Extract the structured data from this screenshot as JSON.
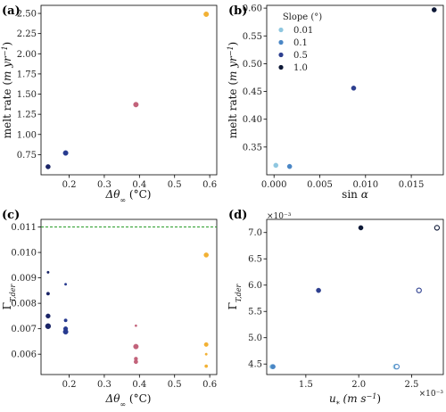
{
  "chart_data": [
    {
      "id": "a",
      "type": "scatter",
      "panel_label": "(a)",
      "xlabel": "Δθ∞ (°C)",
      "ylabel": "melt rate (m yr⁻¹)",
      "xlim": [
        0.12,
        0.62
      ],
      "ylim": [
        0.5,
        2.6
      ],
      "xticks": [
        0.2,
        0.3,
        0.4,
        0.5,
        0.6
      ],
      "xtick_labels": [
        "0.2",
        "0.3",
        "0.4",
        "0.5",
        "0.6"
      ],
      "yticks": [
        0.75,
        1.0,
        1.25,
        1.5,
        1.75,
        2.0,
        2.25,
        2.5
      ],
      "ytick_labels": [
        "0.75",
        "1.00",
        "1.25",
        "1.50",
        "1.75",
        "2.00",
        "2.25",
        "2.50"
      ],
      "points": [
        {
          "x": 0.14,
          "y": 0.6,
          "color": "#1a2466",
          "r": 2.6
        },
        {
          "x": 0.19,
          "y": 0.77,
          "color": "#273a8f",
          "r": 2.8
        },
        {
          "x": 0.39,
          "y": 1.37,
          "color": "#c2627a",
          "r": 2.8
        },
        {
          "x": 0.59,
          "y": 2.49,
          "color": "#f2b134",
          "r": 2.8
        }
      ]
    },
    {
      "id": "b",
      "type": "scatter",
      "panel_label": "(b)",
      "xlabel": "sin α",
      "ylabel": "melt rate (m yr⁻¹)",
      "xlim": [
        -0.0008,
        0.0185
      ],
      "ylim": [
        0.3,
        0.605
      ],
      "xticks": [
        0.0,
        0.005,
        0.01,
        0.015
      ],
      "xtick_labels": [
        "0.000",
        "0.005",
        "0.010",
        "0.015"
      ],
      "yticks": [
        0.35,
        0.4,
        0.45,
        0.5,
        0.55,
        0.6
      ],
      "ytick_labels": [
        "0.35",
        "0.40",
        "0.45",
        "0.50",
        "0.55",
        "0.60"
      ],
      "legend": {
        "title": "Slope (°)",
        "placement": "upper-left",
        "entries": [
          {
            "label": "0.01",
            "color": "#8fc7e0"
          },
          {
            "label": "0.1",
            "color": "#4a86c5"
          },
          {
            "label": "0.5",
            "color": "#2d3f8f"
          },
          {
            "label": "1.0",
            "color": "#0d1836"
          }
        ]
      },
      "points": [
        {
          "x": 0.0002,
          "y": 0.317,
          "color": "#8fc7e0",
          "r": 2.6
        },
        {
          "x": 0.0017,
          "y": 0.315,
          "color": "#4a86c5",
          "r": 2.6
        },
        {
          "x": 0.0087,
          "y": 0.456,
          "color": "#2d3f8f",
          "r": 2.6
        },
        {
          "x": 0.0175,
          "y": 0.597,
          "color": "#0d1836",
          "r": 2.6
        }
      ]
    },
    {
      "id": "c",
      "type": "scatter",
      "panel_label": "(c)",
      "xlabel": "Δθ∞ (°C)",
      "ylabel": "ΓT,der",
      "xlim": [
        0.12,
        0.62
      ],
      "ylim": [
        0.0052,
        0.0113
      ],
      "xticks": [
        0.2,
        0.3,
        0.4,
        0.5,
        0.6
      ],
      "xtick_labels": [
        "0.2",
        "0.3",
        "0.4",
        "0.5",
        "0.6"
      ],
      "yticks": [
        0.006,
        0.007,
        0.008,
        0.009,
        0.01,
        0.011
      ],
      "ytick_labels": [
        "0.006",
        "0.007",
        "0.008",
        "0.009",
        "0.010",
        "0.011"
      ],
      "hline": {
        "y": 0.011,
        "color": "#2a9d2a",
        "style": "dashed"
      },
      "points": [
        {
          "x": 0.14,
          "y": 0.00922,
          "color": "#1a2466",
          "r": 1.3
        },
        {
          "x": 0.14,
          "y": 0.00838,
          "color": "#1a2466",
          "r": 1.8
        },
        {
          "x": 0.14,
          "y": 0.0075,
          "color": "#1a2466",
          "r": 2.5
        },
        {
          "x": 0.14,
          "y": 0.0071,
          "color": "#1a2466",
          "r": 3.0
        },
        {
          "x": 0.19,
          "y": 0.00875,
          "color": "#273a8f",
          "r": 1.3
        },
        {
          "x": 0.19,
          "y": 0.00733,
          "color": "#273a8f",
          "r": 1.8
        },
        {
          "x": 0.19,
          "y": 0.007,
          "color": "#273a8f",
          "r": 2.4
        },
        {
          "x": 0.19,
          "y": 0.00688,
          "color": "#273a8f",
          "r": 2.8
        },
        {
          "x": 0.39,
          "y": 0.00712,
          "color": "#c2627a",
          "r": 1.2
        },
        {
          "x": 0.39,
          "y": 0.0063,
          "color": "#c2627a",
          "r": 2.8
        },
        {
          "x": 0.39,
          "y": 0.00582,
          "color": "#c2627a",
          "r": 2.0
        },
        {
          "x": 0.39,
          "y": 0.0057,
          "color": "#c2627a",
          "r": 2.2
        },
        {
          "x": 0.59,
          "y": 0.0099,
          "color": "#f2b134",
          "r": 2.6
        },
        {
          "x": 0.59,
          "y": 0.00638,
          "color": "#f2b134",
          "r": 2.3
        },
        {
          "x": 0.59,
          "y": 0.006,
          "color": "#f2b134",
          "r": 1.3
        },
        {
          "x": 0.59,
          "y": 0.00553,
          "color": "#f2b134",
          "r": 1.7
        }
      ]
    },
    {
      "id": "d",
      "type": "scatter",
      "panel_label": "(d)",
      "xlabel": "u* (m s⁻¹)",
      "ylabel": "ΓT,der",
      "x_scale_label": "×10⁻³",
      "y_scale_label": "×10⁻³",
      "xlim": [
        1.13,
        2.8
      ],
      "ylim": [
        4.3,
        7.25
      ],
      "xticks": [
        1.5,
        2.0,
        2.5
      ],
      "xtick_labels": [
        "1.5",
        "2.0",
        "2.5"
      ],
      "yticks": [
        4.5,
        5.0,
        5.5,
        6.0,
        6.5,
        7.0
      ],
      "ytick_labels": [
        "4.5",
        "5.0",
        "5.5",
        "6.0",
        "6.5",
        "7.0"
      ],
      "points": [
        {
          "x": 1.18,
          "y": 4.45,
          "color": "#8fc7e0",
          "r": 2.6,
          "filled": true
        },
        {
          "x": 1.19,
          "y": 4.45,
          "color": "#4a86c5",
          "r": 2.6,
          "filled": true
        },
        {
          "x": 1.62,
          "y": 5.9,
          "color": "#2d3f8f",
          "r": 2.6,
          "filled": true
        },
        {
          "x": 2.02,
          "y": 7.09,
          "color": "#0d1836",
          "r": 2.6,
          "filled": true
        },
        {
          "x": 2.35,
          "y": 4.45,
          "color": "#8fc7e0",
          "r": 2.6,
          "filled": false
        },
        {
          "x": 2.36,
          "y": 4.45,
          "color": "#4a86c5",
          "r": 2.6,
          "filled": false
        },
        {
          "x": 2.57,
          "y": 5.9,
          "color": "#2d3f8f",
          "r": 2.6,
          "filled": false
        },
        {
          "x": 2.74,
          "y": 7.09,
          "color": "#0d1836",
          "r": 2.6,
          "filled": false
        }
      ]
    }
  ]
}
